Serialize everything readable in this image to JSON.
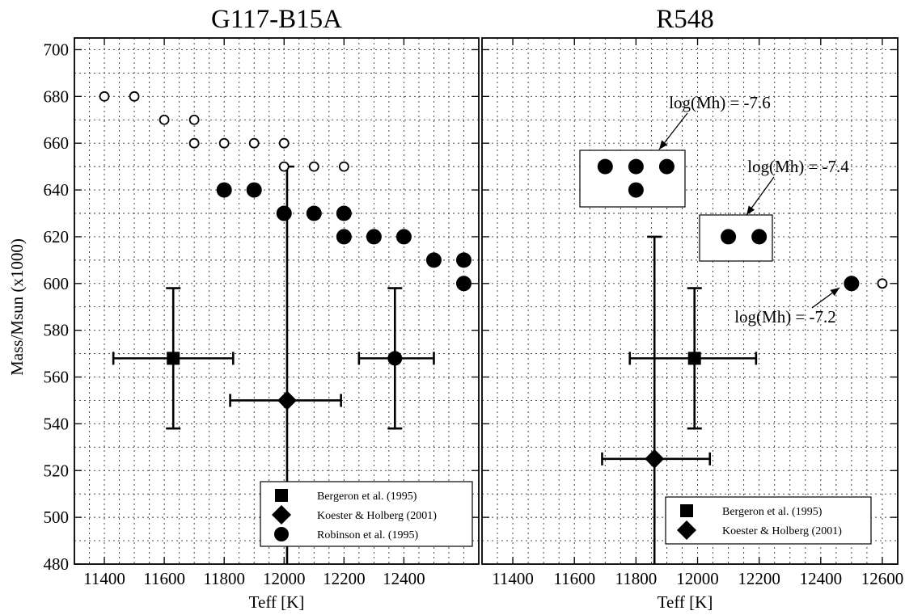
{
  "chart_data": [
    {
      "type": "scatter",
      "title": "G117-B15A",
      "xlabel": "Teff [K]",
      "ylabel": "Mass/Msun (x1000)",
      "xlim": [
        11300,
        12650
      ],
      "ylim": [
        480,
        705
      ],
      "x_ticks": [
        11400,
        11600,
        11800,
        12000,
        12200,
        12400
      ],
      "y_ticks": [
        480,
        500,
        520,
        540,
        560,
        580,
        600,
        620,
        640,
        660,
        680,
        700
      ],
      "grid": true,
      "legend_position": "bottom-right",
      "legend": [
        {
          "label": "Bergeron et al. (1995)",
          "marker": "square"
        },
        {
          "label": "Koester & Holberg (2001)",
          "marker": "diamond"
        },
        {
          "label": "Robinson et al. (1995)",
          "marker": "circle"
        }
      ],
      "open_circles": [
        {
          "x": 11400,
          "y": 680
        },
        {
          "x": 11500,
          "y": 680
        },
        {
          "x": 11600,
          "y": 670
        },
        {
          "x": 11700,
          "y": 670
        },
        {
          "x": 11700,
          "y": 660
        },
        {
          "x": 11800,
          "y": 660
        },
        {
          "x": 11900,
          "y": 660
        },
        {
          "x": 12000,
          "y": 660
        },
        {
          "x": 12000,
          "y": 650
        },
        {
          "x": 12100,
          "y": 650
        },
        {
          "x": 12200,
          "y": 650
        }
      ],
      "filled_circles": [
        {
          "x": 11800,
          "y": 640
        },
        {
          "x": 11900,
          "y": 640
        },
        {
          "x": 12000,
          "y": 630
        },
        {
          "x": 12100,
          "y": 630
        },
        {
          "x": 12200,
          "y": 630
        },
        {
          "x": 12200,
          "y": 620
        },
        {
          "x": 12300,
          "y": 620
        },
        {
          "x": 12400,
          "y": 620
        },
        {
          "x": 12500,
          "y": 610
        },
        {
          "x": 12600,
          "y": 610
        },
        {
          "x": 12600,
          "y": 600
        }
      ],
      "error_points": [
        {
          "marker": "square",
          "x": 11630,
          "y": 568,
          "xerr": [
            11430,
            11830
          ],
          "yerr": [
            538,
            598
          ]
        },
        {
          "marker": "diamond",
          "x": 12010,
          "y": 550,
          "xerr": [
            11820,
            12190
          ],
          "yerr": [
            480,
            650
          ]
        },
        {
          "marker": "circle",
          "x": 12370,
          "y": 568,
          "xerr": [
            12250,
            12500
          ],
          "yerr": [
            538,
            598
          ]
        }
      ],
      "annotations": []
    },
    {
      "type": "scatter",
      "title": "R548",
      "xlabel": "Teff [K]",
      "ylabel": "",
      "xlim": [
        11300,
        12650
      ],
      "ylim": [
        480,
        705
      ],
      "x_ticks": [
        11400,
        11600,
        11800,
        12000,
        12200,
        12400,
        12600
      ],
      "y_ticks": [
        480,
        500,
        520,
        540,
        560,
        580,
        600,
        620,
        640,
        660,
        680,
        700
      ],
      "grid": true,
      "legend_position": "bottom-right",
      "legend": [
        {
          "label": "Bergeron et al. (1995)",
          "marker": "square"
        },
        {
          "label": "Koester & Holberg (2001)",
          "marker": "diamond"
        }
      ],
      "open_circles": [
        {
          "x": 12600,
          "y": 600
        }
      ],
      "filled_circles": [
        {
          "x": 11700,
          "y": 650
        },
        {
          "x": 11800,
          "y": 650
        },
        {
          "x": 11900,
          "y": 650
        },
        {
          "x": 11800,
          "y": 640
        },
        {
          "x": 12100,
          "y": 620
        },
        {
          "x": 12200,
          "y": 620
        },
        {
          "x": 12500,
          "y": 600
        }
      ],
      "error_points": [
        {
          "marker": "square",
          "x": 11990,
          "y": 568,
          "xerr": [
            11780,
            12190
          ],
          "yerr": [
            538,
            598
          ]
        },
        {
          "marker": "diamond",
          "x": 11860,
          "y": 525,
          "xerr": [
            11690,
            12040
          ],
          "yerr": [
            480,
            620
          ]
        }
      ],
      "annotations": [
        {
          "text": "log(Mh) = -7.6"
        },
        {
          "text": "log(Mh) = -7.4"
        },
        {
          "text": "log(Mh) = -7.2"
        }
      ]
    }
  ]
}
